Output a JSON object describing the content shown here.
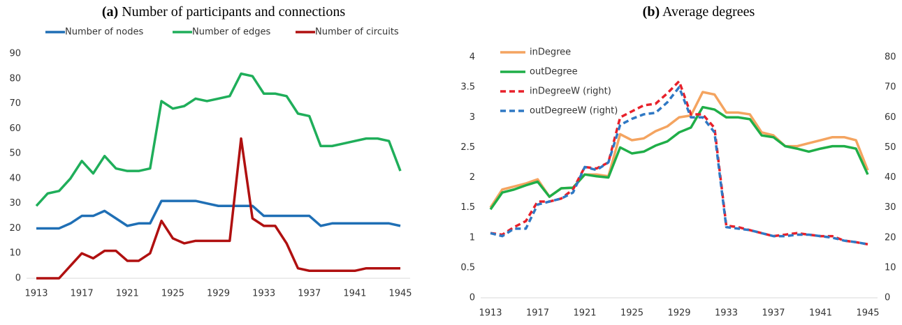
{
  "chart_data": [
    {
      "type": "line",
      "label": "(a)",
      "title": "Number of participants and connections",
      "x": [
        1913,
        1914,
        1915,
        1916,
        1917,
        1918,
        1919,
        1920,
        1921,
        1922,
        1923,
        1924,
        1925,
        1926,
        1927,
        1928,
        1929,
        1930,
        1931,
        1932,
        1933,
        1934,
        1935,
        1936,
        1937,
        1938,
        1939,
        1940,
        1941,
        1942,
        1943,
        1944,
        1945
      ],
      "xlim": [
        1913,
        1945
      ],
      "xticks": [
        1913,
        1917,
        1921,
        1925,
        1929,
        1933,
        1937,
        1941,
        1945
      ],
      "ylim": [
        0,
        90
      ],
      "yticks": [
        0,
        10,
        20,
        30,
        40,
        50,
        60,
        70,
        80,
        90
      ],
      "grid": false,
      "legend": "top",
      "series": [
        {
          "name": "Number of nodes",
          "color": "#1f6fb5",
          "values": [
            20,
            20,
            20,
            22,
            25,
            25,
            27,
            24,
            21,
            22,
            22,
            31,
            31,
            31,
            31,
            30,
            29,
            29,
            29,
            29,
            25,
            25,
            25,
            25,
            25,
            21,
            22,
            22,
            22,
            22,
            22,
            22,
            21
          ]
        },
        {
          "name": "Number of  edges",
          "color": "#1fae5a",
          "values": [
            29,
            34,
            35,
            40,
            47,
            42,
            49,
            44,
            43,
            43,
            44,
            71,
            68,
            69,
            72,
            71,
            72,
            73,
            82,
            81,
            74,
            74,
            73,
            66,
            65,
            53,
            53,
            54,
            55,
            56,
            56,
            55,
            43
          ]
        },
        {
          "name": "Number of circuits",
          "color": "#b01010",
          "values": [
            0,
            0,
            0,
            5,
            10,
            8,
            11,
            11,
            7,
            7,
            10,
            23,
            16,
            14,
            15,
            15,
            15,
            15,
            56,
            24,
            21,
            21,
            14,
            4,
            3,
            3,
            3,
            3,
            3,
            4,
            4,
            4,
            4
          ]
        }
      ]
    },
    {
      "type": "line",
      "label": "(b)",
      "title": "Average degrees",
      "x": [
        1913,
        1914,
        1915,
        1916,
        1917,
        1918,
        1919,
        1920,
        1921,
        1922,
        1923,
        1924,
        1925,
        1926,
        1927,
        1928,
        1929,
        1930,
        1931,
        1932,
        1933,
        1934,
        1935,
        1936,
        1937,
        1938,
        1939,
        1940,
        1941,
        1942,
        1943,
        1944,
        1945
      ],
      "xlim": [
        1913,
        1945
      ],
      "xticks": [
        1913,
        1917,
        1921,
        1925,
        1929,
        1933,
        1937,
        1941,
        1945
      ],
      "ylim": [
        0,
        4
      ],
      "yticks": [
        0,
        0.5,
        1,
        1.5,
        2,
        2.5,
        3,
        3.5,
        4
      ],
      "y2lim": [
        0,
        80
      ],
      "y2ticks": [
        0,
        10,
        20,
        30,
        40,
        50,
        60,
        70,
        80
      ],
      "grid": false,
      "legend": "upper left",
      "series": [
        {
          "name": "inDegree",
          "color": "#f4a460",
          "values": [
            1.5,
            1.8,
            1.85,
            1.9,
            1.97,
            1.68,
            1.82,
            1.83,
            2.05,
            2.05,
            2.02,
            2.72,
            2.62,
            2.65,
            2.77,
            2.85,
            3.0,
            3.03,
            3.42,
            3.38,
            3.08,
            3.08,
            3.05,
            2.75,
            2.7,
            2.52,
            2.52,
            2.57,
            2.62,
            2.67,
            2.67,
            2.62,
            2.12
          ]
        },
        {
          "name": "outDegree",
          "color": "#1fae48",
          "values": [
            1.47,
            1.75,
            1.8,
            1.87,
            1.93,
            1.68,
            1.82,
            1.83,
            2.05,
            2.02,
            2.0,
            2.5,
            2.4,
            2.43,
            2.53,
            2.6,
            2.75,
            2.83,
            3.17,
            3.13,
            3.0,
            3.0,
            2.97,
            2.7,
            2.67,
            2.52,
            2.48,
            2.43,
            2.48,
            2.52,
            2.52,
            2.48,
            2.05
          ]
        },
        {
          "name": "inDegreeW (right)",
          "color": "#e8202a",
          "dashed": true,
          "axis": "y2",
          "values": [
            21.5,
            21,
            23.5,
            25.5,
            32,
            32,
            33,
            36,
            43.5,
            43,
            45,
            60,
            62,
            64,
            64.5,
            68,
            72,
            61,
            61,
            56.5,
            24,
            23.5,
            22.5,
            21.5,
            20.5,
            21,
            21.5,
            21,
            20.5,
            20.5,
            19,
            18.5,
            17.8
          ]
        },
        {
          "name": "outDegreeW (right)",
          "color": "#2f78c4",
          "dashed": true,
          "axis": "y2",
          "values": [
            21.5,
            20.5,
            23,
            23,
            31,
            32,
            33,
            35,
            43.5,
            42.5,
            45,
            57.5,
            59.5,
            61,
            61.5,
            65,
            70,
            60,
            60,
            55,
            23.5,
            23,
            22.5,
            21.5,
            20.5,
            20.5,
            21,
            21,
            20.5,
            20,
            19,
            18.5,
            17.8
          ]
        }
      ]
    }
  ]
}
